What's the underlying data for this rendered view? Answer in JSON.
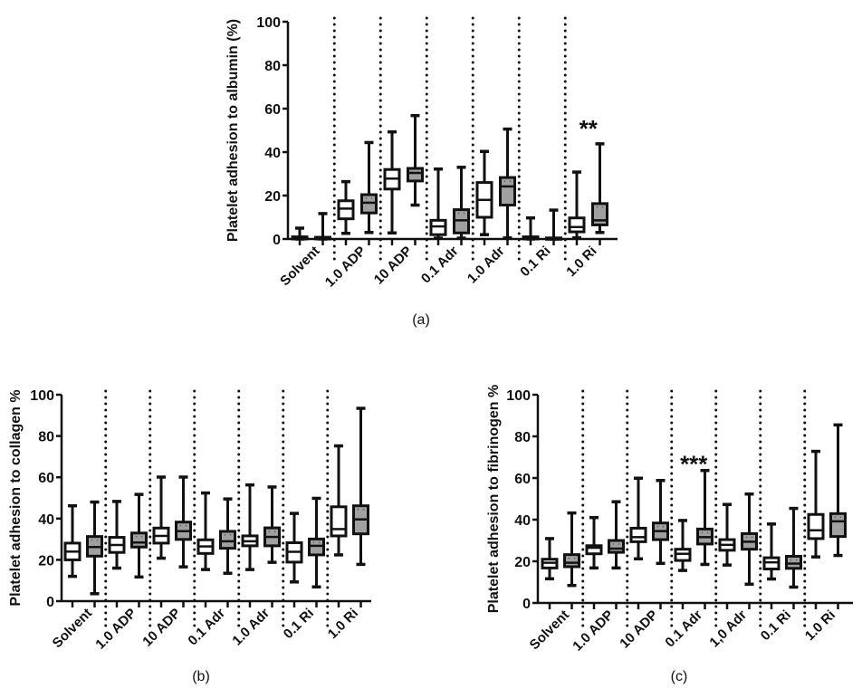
{
  "chart_data": [
    {
      "type": "boxplot",
      "panel_label": "(a)",
      "title": "",
      "xlabel": "",
      "ylabel": "Platelet adhesion to albumin (%)",
      "ylim": [
        0,
        100
      ],
      "yticks": [
        "0",
        "20",
        "40",
        "60",
        "80",
        "100"
      ],
      "categories": [
        "Solvent",
        "1.0 ADP",
        "10 ADP",
        "0.1 Adr",
        "1.0 Adr",
        "0.1 Ri",
        "1.0 Ri"
      ],
      "series": [
        {
          "name": "white",
          "fill": "#ffffff",
          "boxes": [
            {
              "min": 0,
              "q1": 0,
              "median": 0.5,
              "q3": 1,
              "max": 5
            },
            {
              "min": 2.6,
              "q1": 9.3,
              "median": 14,
              "q3": 17.6,
              "max": 26.4
            },
            {
              "min": 2.8,
              "q1": 23,
              "median": 27.8,
              "q3": 32,
              "max": 49.3
            },
            {
              "min": 0.4,
              "q1": 2,
              "median": 5.8,
              "q3": 8.6,
              "max": 32.2
            },
            {
              "min": 2,
              "q1": 10,
              "median": 18,
              "q3": 26,
              "max": 40.3
            },
            {
              "min": 0,
              "q1": 0,
              "median": 0.5,
              "q3": 1,
              "max": 9.7
            },
            {
              "min": 0.5,
              "q1": 3.3,
              "median": 5.5,
              "q3": 9.7,
              "max": 30.8
            }
          ]
        },
        {
          "name": "gray",
          "fill": "#a0a0a0",
          "boxes": [
            {
              "min": 0,
              "q1": 0,
              "median": 0.4,
              "q3": 0.8,
              "max": 11.7
            },
            {
              "min": 3,
              "q1": 12,
              "median": 16.7,
              "q3": 20.4,
              "max": 44.4
            },
            {
              "min": 15.6,
              "q1": 26.7,
              "median": 30.4,
              "q3": 32.5,
              "max": 56.8
            },
            {
              "min": 0.4,
              "q1": 2.8,
              "median": 8.6,
              "q3": 13.5,
              "max": 33
            },
            {
              "min": 0.5,
              "q1": 15.6,
              "median": 24.2,
              "q3": 28.3,
              "max": 50.6
            },
            {
              "min": 0,
              "q1": 0,
              "median": 0.3,
              "q3": 0.5,
              "max": 13.3
            },
            {
              "min": 3,
              "q1": 6.5,
              "median": 8.6,
              "q3": 16.3,
              "max": 43.8
            }
          ]
        }
      ],
      "annotations": [
        {
          "text": "**",
          "category": "1.0 Ri",
          "y": 52
        }
      ]
    },
    {
      "type": "boxplot",
      "panel_label": "(b)",
      "title": "",
      "xlabel": "",
      "ylabel": "Platelet adhesion to collagen %",
      "ylim": [
        0,
        100
      ],
      "yticks": [
        "0",
        "20",
        "40",
        "60",
        "80",
        "100"
      ],
      "categories": [
        "Solvent",
        "1.0 ADP",
        "10 ADP",
        "0.1 Adr",
        "1.0 Adr",
        "0.1 Ri",
        "1.0 Ri"
      ],
      "series": [
        {
          "name": "white",
          "fill": "#ffffff",
          "boxes": [
            {
              "min": 12,
              "q1": 20,
              "median": 24,
              "q3": 28.1,
              "max": 46.2
            },
            {
              "min": 16,
              "q1": 23.6,
              "median": 27.2,
              "q3": 30.9,
              "max": 48.3
            },
            {
              "min": 20.8,
              "q1": 28.1,
              "median": 31.6,
              "q3": 35.4,
              "max": 60.1
            },
            {
              "min": 15.3,
              "q1": 23.1,
              "median": 26.5,
              "q3": 29.7,
              "max": 52.4
            },
            {
              "min": 15.3,
              "q1": 26.8,
              "median": 29,
              "q3": 31.6,
              "max": 56.3
            },
            {
              "min": 9.3,
              "q1": 18.9,
              "median": 23.9,
              "q3": 28.3,
              "max": 42.5
            },
            {
              "min": 22.4,
              "q1": 31.6,
              "median": 34.9,
              "q3": 45.7,
              "max": 75.2
            }
          ]
        },
        {
          "name": "gray",
          "fill": "#a0a0a0",
          "boxes": [
            {
              "min": 3.6,
              "q1": 21.8,
              "median": 26.2,
              "q3": 31.3,
              "max": 48
            },
            {
              "min": 11.7,
              "q1": 26.2,
              "median": 28.4,
              "q3": 33,
              "max": 51.7
            },
            {
              "min": 16.6,
              "q1": 29.9,
              "median": 33.9,
              "q3": 38.3,
              "max": 60.1
            },
            {
              "min": 13.5,
              "q1": 25.6,
              "median": 29,
              "q3": 33.8,
              "max": 49.5
            },
            {
              "min": 18.8,
              "q1": 26.8,
              "median": 31.1,
              "q3": 35.5,
              "max": 55.3
            },
            {
              "min": 6.9,
              "q1": 22.4,
              "median": 26.8,
              "q3": 30.1,
              "max": 49.8
            },
            {
              "min": 17.8,
              "q1": 32.6,
              "median": 39.6,
              "q3": 46.2,
              "max": 93.4
            }
          ]
        }
      ],
      "annotations": []
    },
    {
      "type": "boxplot",
      "panel_label": "(c)",
      "title": "",
      "xlabel": "",
      "ylabel": "Platelet adhesion to fibrinogen %",
      "ylim": [
        0,
        100
      ],
      "yticks": [
        "0",
        "20",
        "40",
        "60",
        "80",
        "100"
      ],
      "categories": [
        "Solvent",
        "1.0 ADP",
        "10 ADP",
        "0.1 Adr",
        "1,0 Adr",
        "0.1 Ri",
        "1.0 Ri"
      ],
      "series": [
        {
          "name": "white",
          "fill": "#ffffff",
          "boxes": [
            {
              "min": 11.6,
              "q1": 16.8,
              "median": 19.3,
              "q3": 21,
              "max": 30.9
            },
            {
              "min": 16.8,
              "q1": 23.6,
              "median": 26.5,
              "q3": 27.5,
              "max": 41
            },
            {
              "min": 21.2,
              "q1": 29.4,
              "median": 31.6,
              "q3": 35.9,
              "max": 59.9
            },
            {
              "min": 15.6,
              "q1": 20.4,
              "median": 23.6,
              "q3": 25.8,
              "max": 39.6
            },
            {
              "min": 18.2,
              "q1": 25.3,
              "median": 27.9,
              "q3": 30.4,
              "max": 47.3
            },
            {
              "min": 11.5,
              "q1": 16.3,
              "median": 19.5,
              "q3": 21.7,
              "max": 37.9
            },
            {
              "min": 22.1,
              "q1": 30.9,
              "median": 34.9,
              "q3": 42.5,
              "max": 72.8
            }
          ]
        },
        {
          "name": "gray",
          "fill": "#a0a0a0",
          "boxes": [
            {
              "min": 8.4,
              "q1": 17.4,
              "median": 19.3,
              "q3": 23.2,
              "max": 43.2
            },
            {
              "min": 16.8,
              "q1": 24.3,
              "median": 26.1,
              "q3": 30,
              "max": 48.6
            },
            {
              "min": 19,
              "q1": 30.4,
              "median": 34.5,
              "q3": 38.4,
              "max": 58.8
            },
            {
              "min": 18.5,
              "q1": 28.3,
              "median": 31.6,
              "q3": 35.5,
              "max": 63.6
            },
            {
              "min": 9,
              "q1": 25.8,
              "median": 29.4,
              "q3": 33.3,
              "max": 52.3
            },
            {
              "min": 7.6,
              "q1": 16.6,
              "median": 18.9,
              "q3": 22.4,
              "max": 45.4
            },
            {
              "min": 22.8,
              "q1": 31.9,
              "median": 39.2,
              "q3": 42.9,
              "max": 85.5
            }
          ]
        }
      ],
      "annotations": [
        {
          "text": "***",
          "category": "0.1 Adr",
          "y": 68
        }
      ]
    }
  ]
}
